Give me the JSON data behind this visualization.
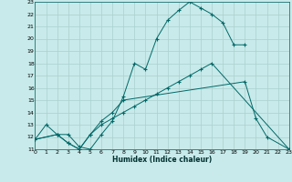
{
  "title": "",
  "xlabel": "Humidex (Indice chaleur)",
  "background_color": "#c8eaea",
  "grid_color": "#aad0ce",
  "line_color": "#006868",
  "xlim": [
    0,
    23
  ],
  "ylim": [
    11,
    23
  ],
  "yticks": [
    11,
    12,
    13,
    14,
    15,
    16,
    17,
    18,
    19,
    20,
    21,
    22,
    23
  ],
  "xticks": [
    0,
    1,
    2,
    3,
    4,
    5,
    6,
    7,
    8,
    9,
    10,
    11,
    12,
    13,
    14,
    15,
    16,
    17,
    18,
    19,
    20,
    21,
    22,
    23
  ],
  "line1_x": [
    0,
    1,
    2,
    3,
    4,
    5,
    6,
    7,
    8,
    9,
    10,
    11,
    12,
    13,
    14,
    15,
    16,
    17,
    18,
    19
  ],
  "line1_y": [
    11.8,
    13.0,
    12.2,
    12.2,
    11.2,
    11.0,
    12.2,
    13.3,
    15.3,
    18.0,
    17.5,
    20.0,
    21.5,
    22.3,
    23.0,
    22.5,
    22.0,
    21.3,
    19.5,
    19.5
  ],
  "line2_x": [
    0,
    2,
    3,
    4,
    5,
    6,
    7,
    8,
    19,
    20,
    21,
    23
  ],
  "line2_y": [
    11.8,
    12.2,
    11.5,
    11.0,
    12.2,
    13.3,
    14.0,
    15.0,
    16.5,
    13.5,
    12.0,
    11.0
  ],
  "line3_x": [
    0,
    2,
    3,
    4,
    5,
    6,
    7,
    8,
    9,
    10,
    11,
    12,
    13,
    14,
    15,
    16,
    23
  ],
  "line3_y": [
    11.8,
    12.2,
    11.5,
    11.0,
    12.2,
    13.0,
    13.5,
    14.0,
    14.5,
    15.0,
    15.5,
    16.0,
    16.5,
    17.0,
    17.5,
    18.0,
    11.0
  ]
}
